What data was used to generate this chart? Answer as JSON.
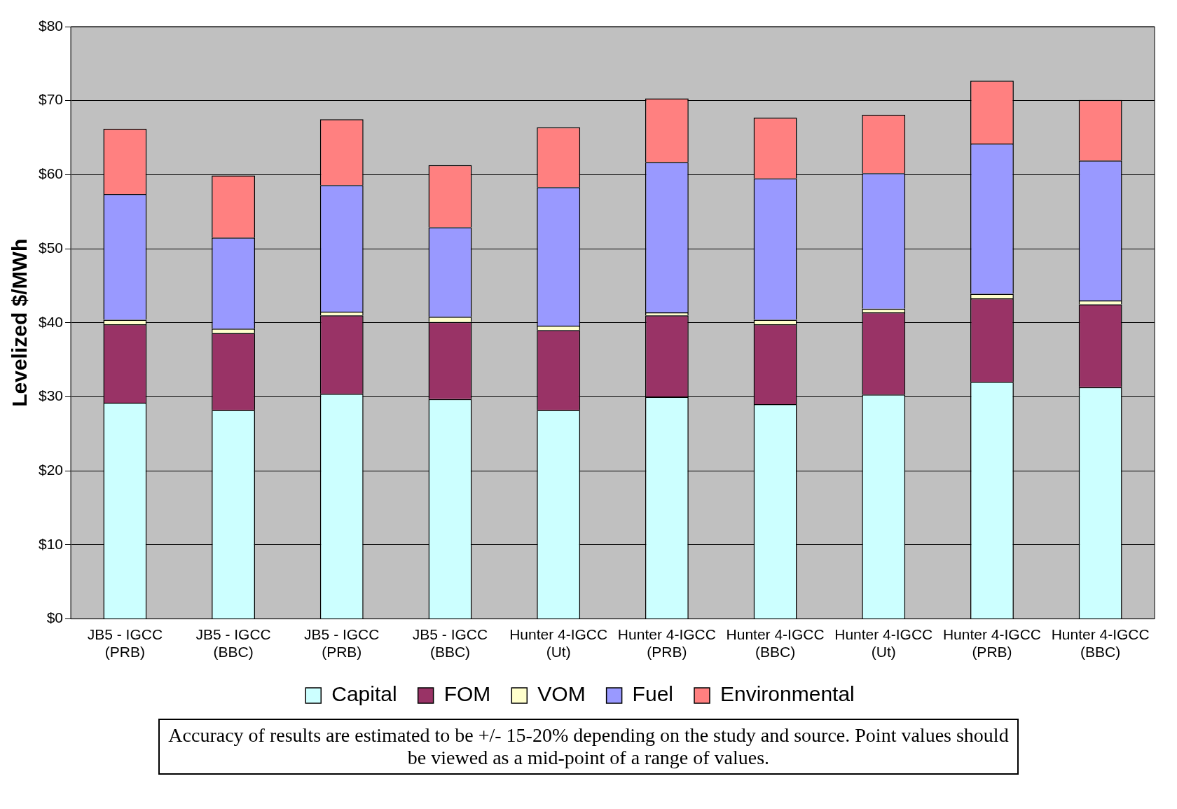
{
  "chart_data": {
    "type": "bar",
    "stacked": true,
    "ylabel": "Levelized $/MWh",
    "categories": [
      "JB5 - IGCC (PRB)",
      "JB5 - IGCC (BBC)",
      "JB5 - IGCC (PRB)",
      "JB5 - IGCC (BBC)",
      "Hunter 4-IGCC (Ut)",
      "Hunter 4-IGCC (PRB)",
      "Hunter 4-IGCC (BBC)",
      "Hunter 4-IGCC (Ut)",
      "Hunter 4-IGCC (PRB)",
      "Hunter 4-IGCC (BBC)"
    ],
    "series": [
      {
        "name": "Capital",
        "color": "#ccffff",
        "values": [
          29.2,
          28.2,
          30.4,
          29.7,
          28.2,
          30.0,
          29.0,
          30.3,
          32.0,
          31.3
        ]
      },
      {
        "name": "FOM",
        "color": "#993366",
        "values": [
          10.6,
          10.4,
          10.6,
          10.4,
          10.8,
          11.0,
          10.8,
          11.1,
          11.3,
          11.2
        ]
      },
      {
        "name": "VOM",
        "color": "#ffffcc",
        "values": [
          0.6,
          0.6,
          0.5,
          0.7,
          0.6,
          0.4,
          0.6,
          0.5,
          0.6,
          0.5
        ]
      },
      {
        "name": "Fuel",
        "color": "#9999ff",
        "values": [
          17.0,
          12.3,
          17.1,
          12.1,
          18.7,
          20.3,
          19.1,
          18.3,
          20.3,
          18.9
        ]
      },
      {
        "name": "Environmental",
        "color": "#ff8080",
        "values": [
          8.8,
          8.4,
          8.9,
          8.4,
          8.1,
          8.6,
          8.2,
          7.9,
          8.5,
          8.2
        ]
      }
    ],
    "ylim": [
      0,
      80
    ],
    "yticks": [
      {
        "value": 0,
        "label": "$0"
      },
      {
        "value": 10,
        "label": "$10"
      },
      {
        "value": 20,
        "label": "$20"
      },
      {
        "value": 30,
        "label": "$30"
      },
      {
        "value": 40,
        "label": "$40"
      },
      {
        "value": 50,
        "label": "$50"
      },
      {
        "value": 60,
        "label": "$60"
      },
      {
        "value": 70,
        "label": "$70"
      },
      {
        "value": 80,
        "label": "$80"
      }
    ],
    "grid": "y",
    "legend": "bottom",
    "annotations": [
      "Accuracy of results are estimated to be +/- 15-20% depending on the study and source. Point values should be viewed as a mid-point of a range of values."
    ]
  }
}
